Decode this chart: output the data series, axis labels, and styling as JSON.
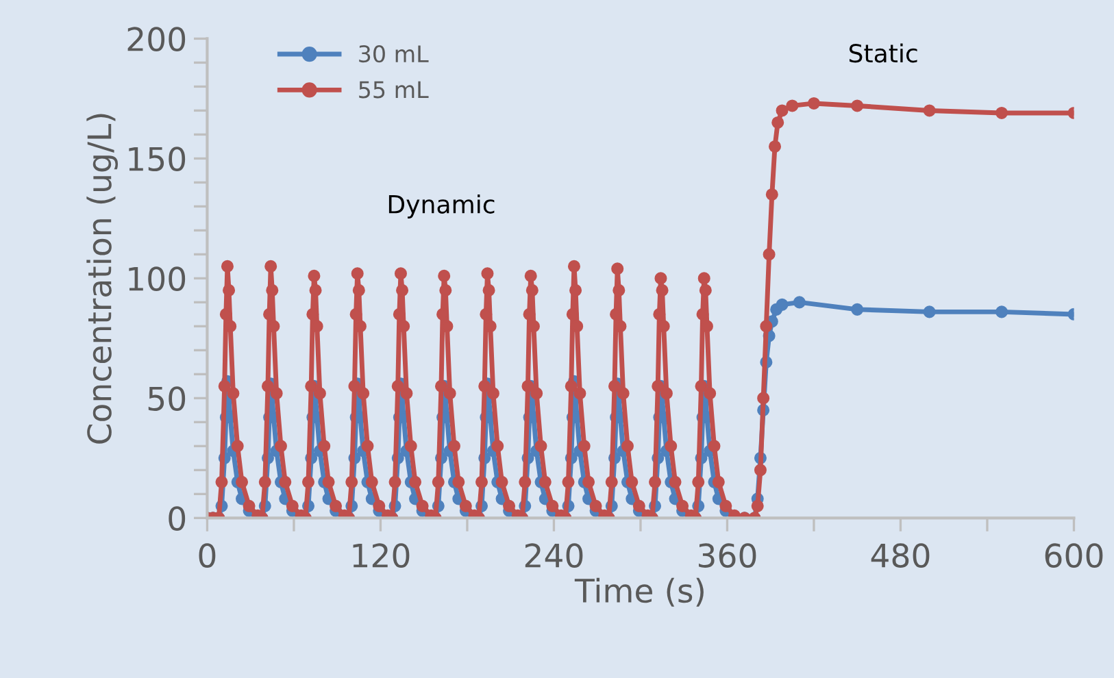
{
  "chart_data": {
    "type": "line",
    "xlabel": "Time (s)",
    "ylabel": "Concentration (ug/L)",
    "xlim": [
      0,
      600
    ],
    "ylim": [
      0,
      200
    ],
    "xticks": [
      0,
      {
        "value": 60,
        "label": null
      },
      120,
      {
        "value": 180,
        "label": null
      },
      240,
      {
        "value": 300,
        "label": null
      },
      360,
      {
        "value": 420,
        "label": null
      },
      480,
      {
        "value": 540,
        "label": null
      },
      600
    ],
    "yticks": [
      0,
      {
        "value": 10,
        "label": null
      },
      {
        "value": 20,
        "label": null
      },
      {
        "value": 30,
        "label": null
      },
      {
        "value": 40,
        "label": null
      },
      50,
      {
        "value": 60,
        "label": null
      },
      {
        "value": 70,
        "label": null
      },
      {
        "value": 80,
        "label": null
      },
      {
        "value": 90,
        "label": null
      },
      100,
      {
        "value": 110,
        "label": null
      },
      {
        "value": 120,
        "label": null
      },
      {
        "value": 130,
        "label": null
      },
      {
        "value": 140,
        "label": null
      },
      150,
      {
        "value": 160,
        "label": null
      },
      {
        "value": 170,
        "label": null
      },
      {
        "value": 180,
        "label": null
      },
      {
        "value": 190,
        "label": null
      },
      200
    ],
    "grid": false,
    "legend": "top left",
    "marker": "circle",
    "line_style": "solid",
    "annotations": [
      "Dynamic",
      "Static"
    ],
    "series": [
      {
        "name": "30 mL",
        "color": "#4f81bd",
        "x": [
          0,
          4,
          8,
          10,
          12,
          13,
          14,
          15,
          16,
          18,
          21,
          24,
          29,
          35,
          38,
          40,
          42,
          43,
          44,
          45,
          46,
          48,
          51,
          54,
          59,
          65,
          68,
          70,
          72,
          73,
          74,
          75,
          76,
          78,
          81,
          84,
          89,
          95,
          98,
          100,
          102,
          103,
          104,
          105,
          106,
          108,
          111,
          114,
          119,
          125,
          128,
          130,
          132,
          133,
          134,
          135,
          136,
          138,
          141,
          144,
          149,
          155,
          158,
          160,
          162,
          163,
          164,
          165,
          166,
          168,
          171,
          174,
          179,
          185,
          188,
          190,
          192,
          193,
          194,
          195,
          196,
          198,
          201,
          204,
          209,
          215,
          218,
          220,
          222,
          223,
          224,
          225,
          226,
          228,
          231,
          234,
          239,
          245,
          248,
          250,
          252,
          253,
          254,
          255,
          256,
          258,
          261,
          264,
          269,
          275,
          278,
          280,
          282,
          283,
          284,
          285,
          286,
          288,
          291,
          294,
          299,
          305,
          308,
          310,
          312,
          313,
          314,
          315,
          316,
          318,
          321,
          324,
          329,
          335,
          338,
          340,
          342,
          343,
          344,
          345,
          346,
          348,
          351,
          354,
          359,
          365,
          372,
          379,
          381,
          383,
          385,
          387,
          389,
          391,
          394,
          398,
          410,
          450,
          500,
          550,
          600
        ],
        "values": [
          0,
          0,
          0,
          5,
          25,
          42,
          57,
          50,
          42,
          28,
          15,
          8,
          3,
          0.5,
          0,
          5,
          25,
          42,
          56,
          50,
          42,
          28,
          15,
          8,
          3,
          0.5,
          0,
          5,
          25,
          42,
          55,
          50,
          42,
          28,
          15,
          8,
          3,
          0.5,
          0,
          5,
          25,
          42,
          56,
          50,
          42,
          28,
          15,
          8,
          3,
          0.5,
          0,
          5,
          25,
          42,
          56,
          50,
          42,
          28,
          15,
          8,
          3,
          0.5,
          0,
          5,
          25,
          42,
          55,
          50,
          42,
          28,
          15,
          8,
          3,
          0.5,
          0,
          5,
          25,
          42,
          56,
          50,
          42,
          28,
          15,
          8,
          3,
          0.5,
          0,
          5,
          25,
          42,
          55,
          50,
          42,
          28,
          15,
          8,
          3,
          0.5,
          0,
          5,
          25,
          42,
          57,
          50,
          42,
          28,
          15,
          8,
          3,
          0.5,
          0,
          5,
          25,
          42,
          56,
          50,
          42,
          28,
          15,
          8,
          3,
          0.5,
          0,
          5,
          25,
          42,
          55,
          50,
          42,
          28,
          15,
          8,
          3,
          0.5,
          0,
          5,
          25,
          42,
          55,
          50,
          42,
          28,
          15,
          8,
          3,
          0.5,
          0,
          0,
          8,
          25,
          45,
          65,
          76,
          82,
          87,
          89,
          90,
          87,
          86,
          86,
          85
        ]
      },
      {
        "name": "55 mL",
        "color": "#c0504d",
        "x": [
          0,
          4,
          8,
          10,
          12,
          13,
          14,
          15,
          16,
          18,
          21,
          24,
          29,
          35,
          38,
          40,
          42,
          43,
          44,
          45,
          46,
          48,
          51,
          54,
          59,
          65,
          68,
          70,
          72,
          73,
          74,
          75,
          76,
          78,
          81,
          84,
          89,
          95,
          98,
          100,
          102,
          103,
          104,
          105,
          106,
          108,
          111,
          114,
          119,
          125,
          128,
          130,
          132,
          133,
          134,
          135,
          136,
          138,
          141,
          144,
          149,
          155,
          158,
          160,
          162,
          163,
          164,
          165,
          166,
          168,
          171,
          174,
          179,
          185,
          188,
          190,
          192,
          193,
          194,
          195,
          196,
          198,
          201,
          204,
          209,
          215,
          218,
          220,
          222,
          223,
          224,
          225,
          226,
          228,
          231,
          234,
          239,
          245,
          248,
          250,
          252,
          253,
          254,
          255,
          256,
          258,
          261,
          264,
          269,
          275,
          278,
          280,
          282,
          283,
          284,
          285,
          286,
          288,
          291,
          294,
          299,
          305,
          308,
          310,
          312,
          313,
          314,
          315,
          316,
          318,
          321,
          324,
          329,
          335,
          338,
          340,
          342,
          343,
          344,
          345,
          346,
          348,
          351,
          354,
          359,
          365,
          372,
          379,
          381,
          383,
          385,
          387,
          389,
          391,
          393,
          395,
          398,
          405,
          420,
          450,
          500,
          550,
          600
        ],
        "values": [
          0,
          0,
          0,
          15,
          55,
          85,
          105,
          95,
          80,
          52,
          30,
          15,
          5,
          1,
          0,
          15,
          55,
          85,
          105,
          95,
          80,
          52,
          30,
          15,
          5,
          1,
          0,
          15,
          55,
          85,
          101,
          95,
          80,
          52,
          30,
          15,
          5,
          1,
          0,
          15,
          55,
          85,
          102,
          95,
          80,
          52,
          30,
          15,
          5,
          1,
          0,
          15,
          55,
          85,
          102,
          95,
          80,
          52,
          30,
          15,
          5,
          1,
          0,
          15,
          55,
          85,
          101,
          95,
          80,
          52,
          30,
          15,
          5,
          1,
          0,
          15,
          55,
          85,
          102,
          95,
          80,
          52,
          30,
          15,
          5,
          1,
          0,
          15,
          55,
          85,
          101,
          95,
          80,
          52,
          30,
          15,
          5,
          1,
          0,
          15,
          55,
          85,
          105,
          95,
          80,
          52,
          30,
          15,
          5,
          1,
          0,
          15,
          55,
          85,
          104,
          95,
          80,
          52,
          30,
          15,
          5,
          1,
          0,
          15,
          55,
          85,
          100,
          95,
          80,
          52,
          30,
          15,
          5,
          1,
          0,
          15,
          55,
          85,
          100,
          95,
          80,
          52,
          30,
          15,
          5,
          1,
          0,
          0,
          5,
          20,
          50,
          80,
          110,
          135,
          155,
          165,
          170,
          172,
          173,
          172,
          170,
          169,
          169
        ]
      }
    ]
  }
}
